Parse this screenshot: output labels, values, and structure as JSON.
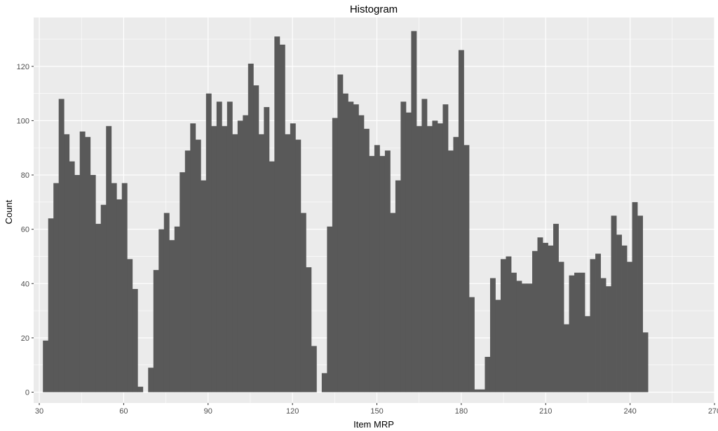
{
  "chart_data": {
    "type": "bar",
    "title": "Histogram",
    "xlabel": "Item MRP",
    "ylabel": "Count",
    "xlim": [
      28,
      270
    ],
    "ylim": [
      -4,
      138
    ],
    "x_ticks": [
      30,
      60,
      90,
      120,
      150,
      180,
      210,
      240,
      270
    ],
    "y_ticks": [
      0,
      20,
      40,
      60,
      80,
      100,
      120
    ],
    "grid": true,
    "bar_color": "#595959",
    "panel_background": "#ebebeb",
    "grid_color": "#ffffff",
    "bins": {
      "start": 31.29,
      "width": 1.87,
      "counts": [
        19,
        64,
        77,
        108,
        95,
        85,
        80,
        96,
        94,
        80,
        62,
        69,
        98,
        77,
        71,
        77,
        49,
        38,
        2,
        0,
        9,
        45,
        60,
        66,
        56,
        61,
        81,
        89,
        99,
        93,
        78,
        110,
        98,
        107,
        98,
        107,
        95,
        100,
        102,
        121,
        113,
        95,
        105,
        85,
        131,
        128,
        95,
        99,
        93,
        66,
        46,
        17,
        0,
        7,
        61,
        101,
        117,
        110,
        107,
        106,
        102,
        97,
        87,
        91,
        87,
        89,
        66,
        78,
        107,
        103,
        133,
        98,
        108,
        98,
        100,
        99,
        106,
        89,
        94,
        126,
        91,
        35,
        1,
        1,
        13,
        42,
        34,
        49,
        50,
        44,
        41,
        40,
        40,
        52,
        57,
        55,
        54,
        62,
        48,
        25,
        43,
        44,
        44,
        28,
        49,
        51,
        42,
        39,
        65,
        58,
        54,
        48,
        70,
        65,
        22
      ]
    }
  }
}
